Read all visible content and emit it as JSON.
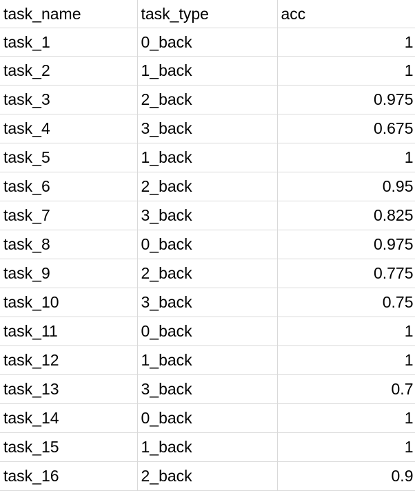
{
  "columns": [
    "task_name",
    "task_type",
    "acc"
  ],
  "rows": [
    {
      "task_name": "task_1",
      "task_type": "0_back",
      "acc": "1"
    },
    {
      "task_name": "task_2",
      "task_type": "1_back",
      "acc": "1"
    },
    {
      "task_name": "task_3",
      "task_type": "2_back",
      "acc": "0.975"
    },
    {
      "task_name": "task_4",
      "task_type": "3_back",
      "acc": "0.675"
    },
    {
      "task_name": "task_5",
      "task_type": "1_back",
      "acc": "1"
    },
    {
      "task_name": "task_6",
      "task_type": "2_back",
      "acc": "0.95"
    },
    {
      "task_name": "task_7",
      "task_type": "3_back",
      "acc": "0.825"
    },
    {
      "task_name": "task_8",
      "task_type": "0_back",
      "acc": "0.975"
    },
    {
      "task_name": "task_9",
      "task_type": "2_back",
      "acc": "0.775"
    },
    {
      "task_name": "task_10",
      "task_type": "3_back",
      "acc": "0.75"
    },
    {
      "task_name": "task_11",
      "task_type": "0_back",
      "acc": "1"
    },
    {
      "task_name": "task_12",
      "task_type": "1_back",
      "acc": "1"
    },
    {
      "task_name": "task_13",
      "task_type": "3_back",
      "acc": "0.7"
    },
    {
      "task_name": "task_14",
      "task_type": "0_back",
      "acc": "1"
    },
    {
      "task_name": "task_15",
      "task_type": "1_back",
      "acc": "1"
    },
    {
      "task_name": "task_16",
      "task_type": "2_back",
      "acc": "0.9"
    }
  ],
  "colors": {
    "gridline": "#d9d9d9",
    "text": "#000000",
    "background": "#ffffff"
  }
}
